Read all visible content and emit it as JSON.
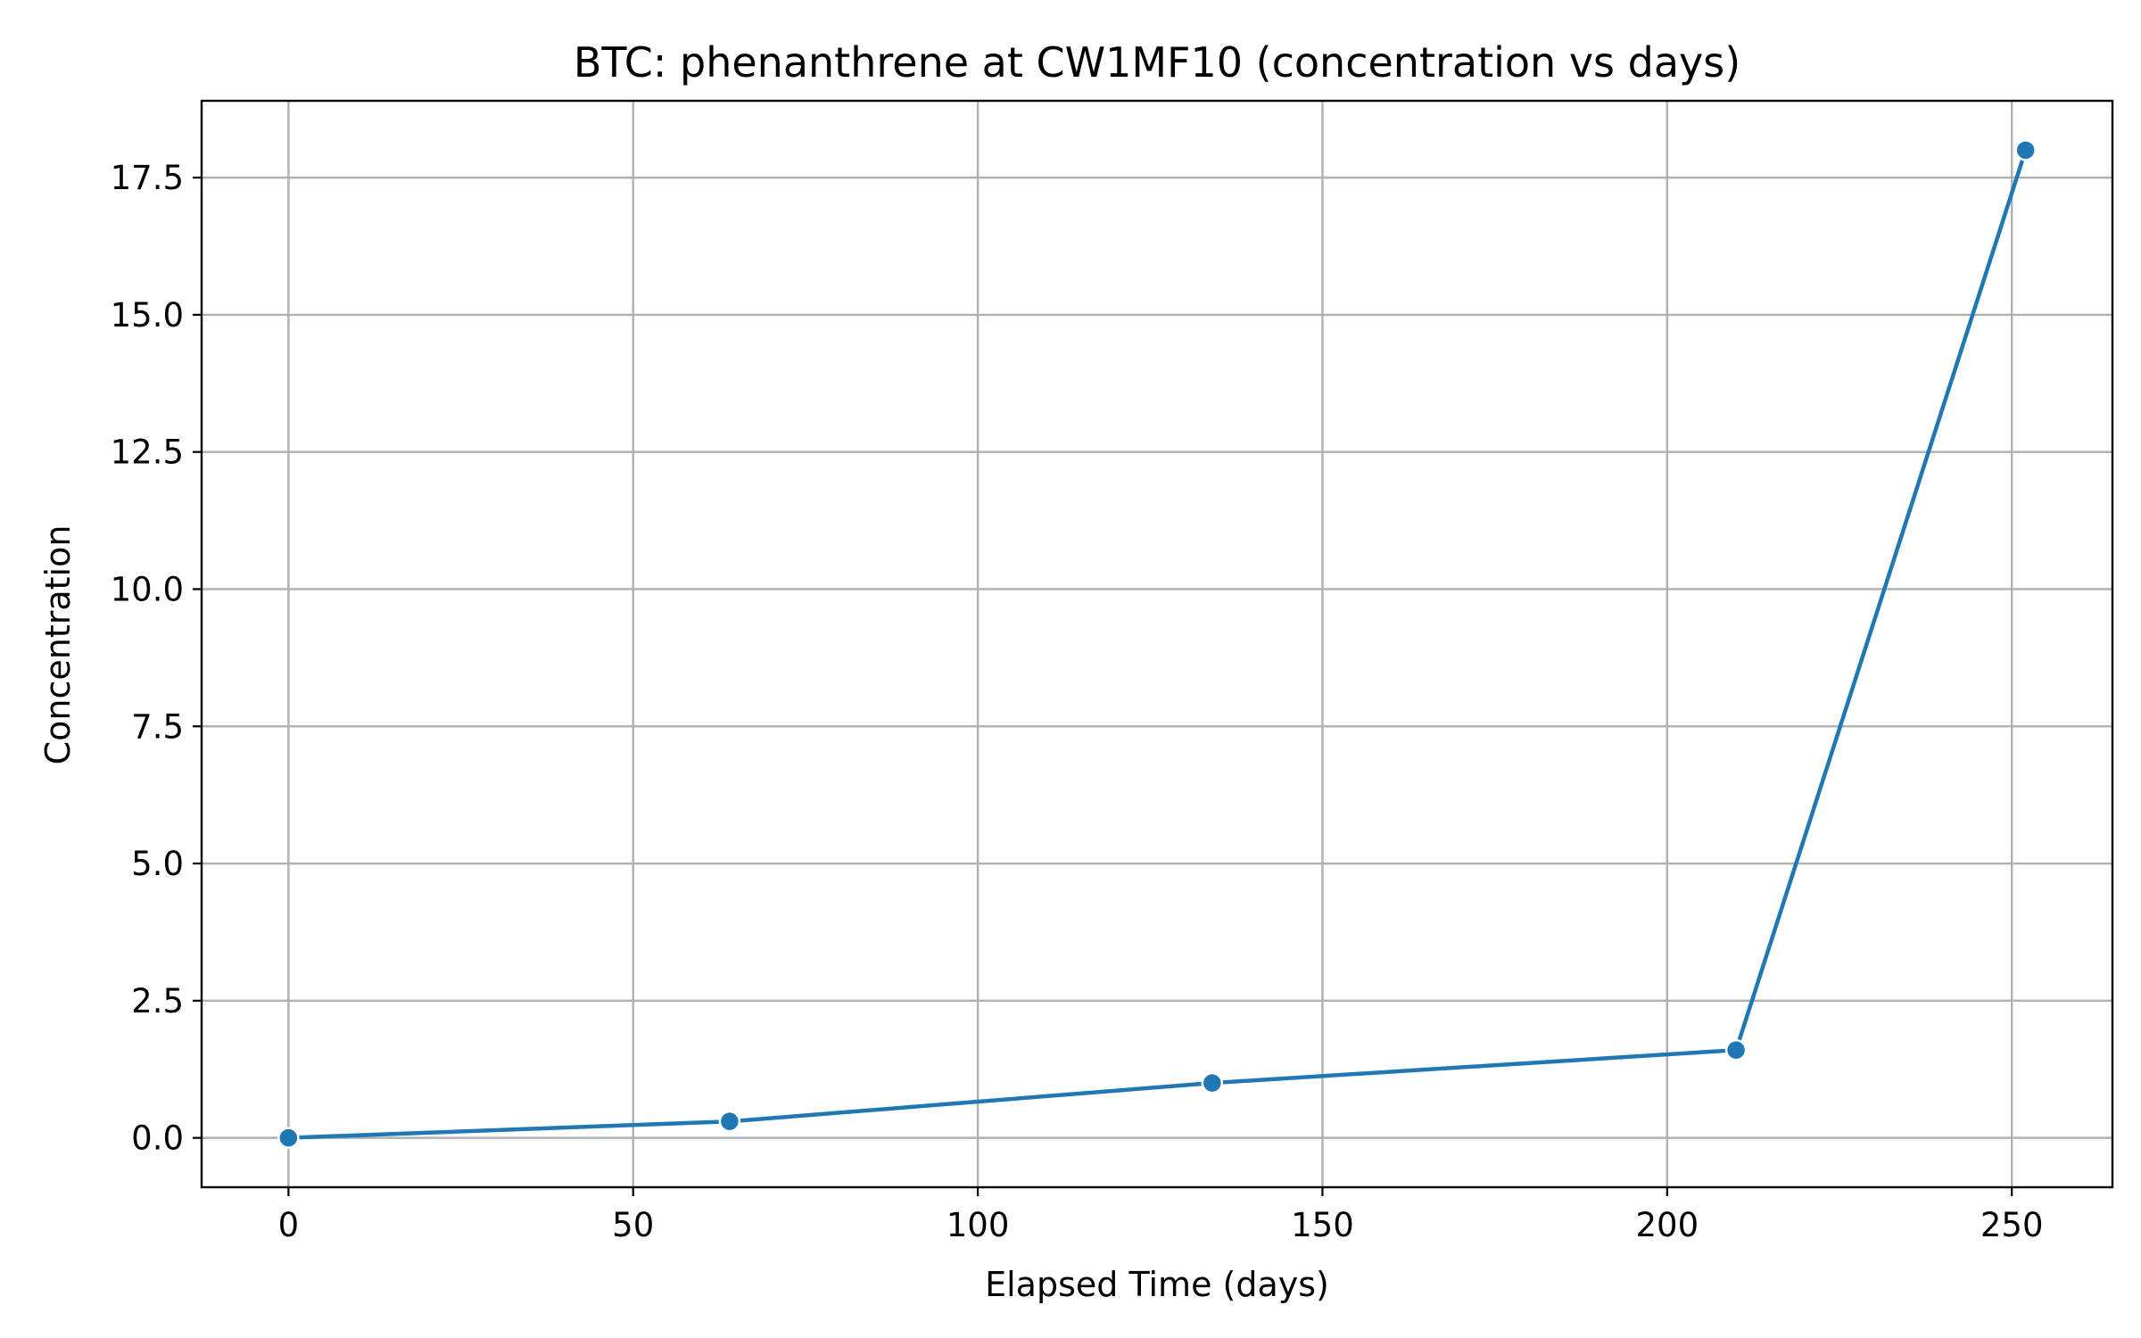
{
  "chart_data": {
    "type": "line",
    "title": "BTC: phenanthrene at CW1MF10 (concentration vs days)",
    "xlabel": "Elapsed Time (days)",
    "ylabel": "Concentration",
    "xlim": [
      -12.6,
      264.6
    ],
    "ylim": [
      -0.9,
      18.9
    ],
    "x_ticks": [
      0,
      50,
      100,
      150,
      200,
      250
    ],
    "x_tick_labels": [
      "0",
      "50",
      "100",
      "150",
      "200",
      "250"
    ],
    "y_ticks": [
      0,
      2.5,
      5,
      7.5,
      10,
      12.5,
      15,
      17.5
    ],
    "y_tick_labels": [
      "0.0",
      "2.5",
      "5.0",
      "7.5",
      "10.0",
      "12.5",
      "15.0",
      "17.5"
    ],
    "grid": true,
    "legend": "none",
    "series": [
      {
        "x": [
          0,
          64,
          134,
          210,
          252
        ],
        "y": [
          0.0,
          0.3,
          1.0,
          1.6,
          18.0
        ],
        "color": "#1f77b4",
        "marker": "circle"
      }
    ]
  }
}
